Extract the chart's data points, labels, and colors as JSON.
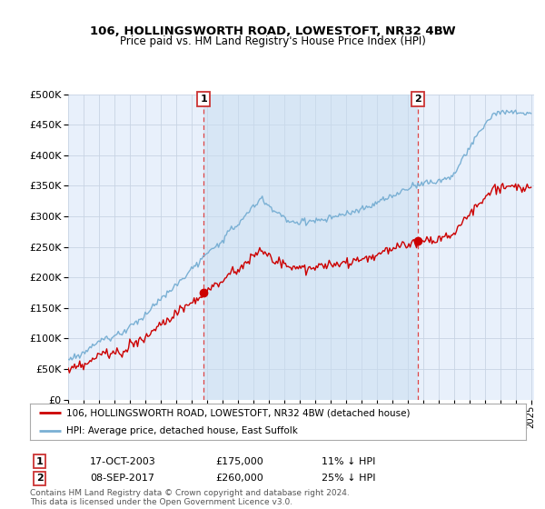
{
  "title": "106, HOLLINGSWORTH ROAD, LOWESTOFT, NR32 4BW",
  "subtitle": "Price paid vs. HM Land Registry's House Price Index (HPI)",
  "sale1_date": "17-OCT-2003",
  "sale1_price": 175000,
  "sale1_label": "11% ↓ HPI",
  "sale2_date": "08-SEP-2017",
  "sale2_price": 260000,
  "sale2_label": "25% ↓ HPI",
  "sale1_year": 2003.8,
  "sale2_year": 2017.67,
  "legend_property": "106, HOLLINGSWORTH ROAD, LOWESTOFT, NR32 4BW (detached house)",
  "legend_hpi": "HPI: Average price, detached house, East Suffolk",
  "property_color": "#cc0000",
  "hpi_color": "#7ab0d4",
  "hpi_fill_color": "#dae8f4",
  "footnote": "Contains HM Land Registry data © Crown copyright and database right 2024.\nThis data is licensed under the Open Government Licence v3.0.",
  "bg_color": "#e8f0fb",
  "grid_color": "#d0d8e8",
  "white": "#ffffff"
}
